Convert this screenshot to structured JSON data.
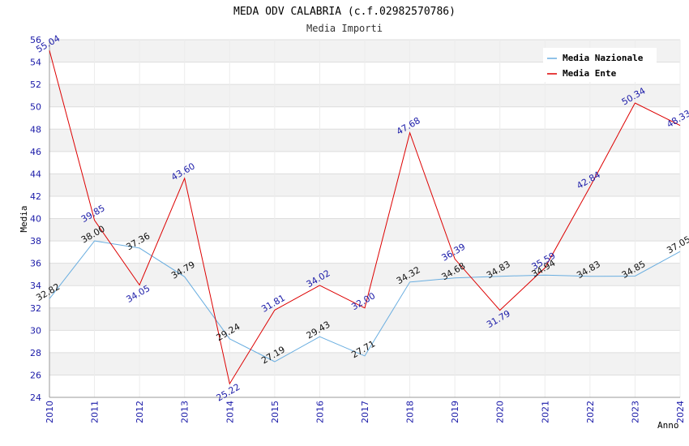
{
  "chart_data": {
    "type": "line",
    "title": "MEDA ODV CALABRIA (c.f.02982570786)",
    "subtitle": "Media Importi",
    "xlabel": "Anno",
    "ylabel": "Media",
    "ylim": [
      24,
      56
    ],
    "yticks": [
      "24",
      "26",
      "28",
      "30",
      "32",
      "34",
      "36",
      "38",
      "40",
      "42",
      "44",
      "46",
      "48",
      "50",
      "52",
      "54",
      "56"
    ],
    "categories": [
      "2010",
      "2011",
      "2012",
      "2013",
      "2014",
      "2015",
      "2016",
      "2017",
      "2018",
      "2019",
      "2020",
      "2021",
      "2022",
      "2023",
      "2024"
    ],
    "series": [
      {
        "name": "Media Nazionale",
        "color": "#6aaee0",
        "values": [
          32.82,
          38.0,
          37.36,
          34.79,
          29.24,
          27.19,
          29.43,
          27.71,
          34.32,
          34.68,
          34.83,
          34.94,
          34.83,
          34.85,
          37.05
        ],
        "labels": [
          "32.82",
          "38.00",
          "37.36",
          "34.79",
          "29.24",
          "27.19",
          "29.43",
          "27.71",
          "34.32",
          "34.68",
          "34.83",
          "34.94",
          "34.83",
          "34.85",
          "37.05"
        ]
      },
      {
        "name": "Media Ente",
        "color": "#dd0000",
        "values": [
          55.04,
          39.85,
          34.05,
          43.6,
          25.22,
          31.81,
          34.02,
          32.0,
          47.68,
          36.39,
          31.79,
          35.59,
          42.84,
          50.34,
          48.33
        ],
        "labels": [
          "55.04",
          "39.85",
          "34.05",
          "43.60",
          "25.22",
          "31.81",
          "34.02",
          "32.00",
          "47.68",
          "36.39",
          "31.79",
          "35.59",
          "42.84",
          "50.34",
          "48.33"
        ]
      }
    ],
    "grid": true,
    "legend": "top-right"
  }
}
